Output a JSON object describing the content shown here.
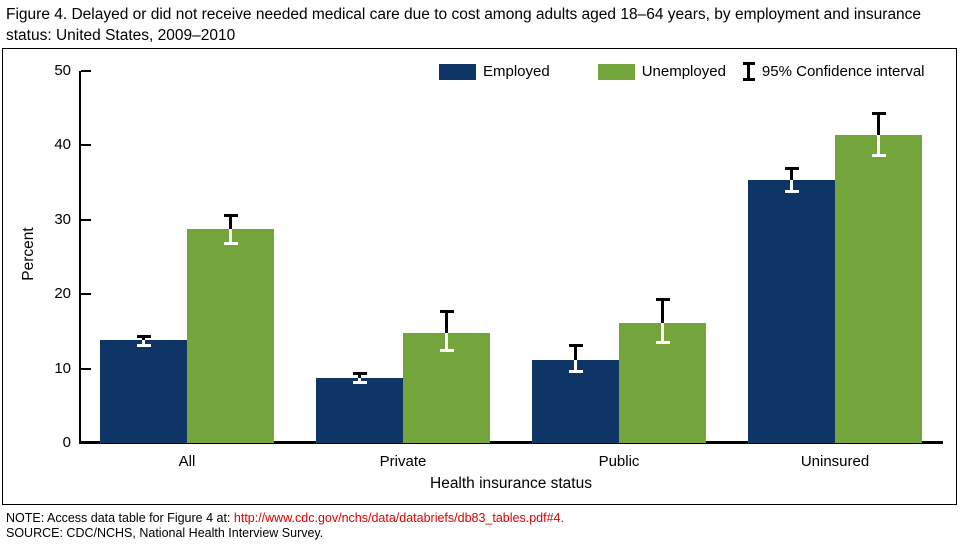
{
  "title": "Figure 4. Delayed or did not receive needed medical care due to cost among adults aged 18–64 years, by employment and insurance status: United States, 2009–2010",
  "legend": {
    "employed_label": "Employed",
    "unemployed_label": "Unemployed",
    "ci_label": "95% Confidence interval"
  },
  "colors": {
    "employed": "#0E3566",
    "unemployed": "#74A53C",
    "axis": "#000000",
    "link_red": "#E00000"
  },
  "chart_data": {
    "type": "bar",
    "title": "",
    "categories": [
      "All",
      "Private",
      "Public",
      "Uninsured"
    ],
    "xlabel": "Health insurance status",
    "ylabel": "Percent",
    "ylim": [
      0,
      50
    ],
    "yticks": [
      0,
      10,
      20,
      30,
      40,
      50
    ],
    "grid": false,
    "legend_position": "top-inside",
    "error_bars": "95% confidence interval",
    "series": [
      {
        "name": "Employed",
        "values": [
          13.8,
          8.8,
          11.2,
          35.4
        ],
        "ci_low": [
          13.0,
          8.1,
          9.5,
          33.8
        ],
        "ci_high": [
          14.4,
          9.4,
          13.2,
          37.0
        ]
      },
      {
        "name": "Unemployed",
        "values": [
          28.7,
          14.8,
          16.1,
          41.4
        ],
        "ci_low": [
          26.7,
          12.4,
          13.4,
          38.6
        ],
        "ci_high": [
          30.6,
          17.8,
          19.3,
          44.4
        ]
      }
    ]
  },
  "notes": {
    "note_prefix": "NOTE: Access data table for Figure 4 at: ",
    "note_link": "http://www.cdc.gov/nchs/data/databriefs/db83_tables.pdf#4.",
    "source": "SOURCE: CDC/NCHS, National Health Interview Survey."
  }
}
